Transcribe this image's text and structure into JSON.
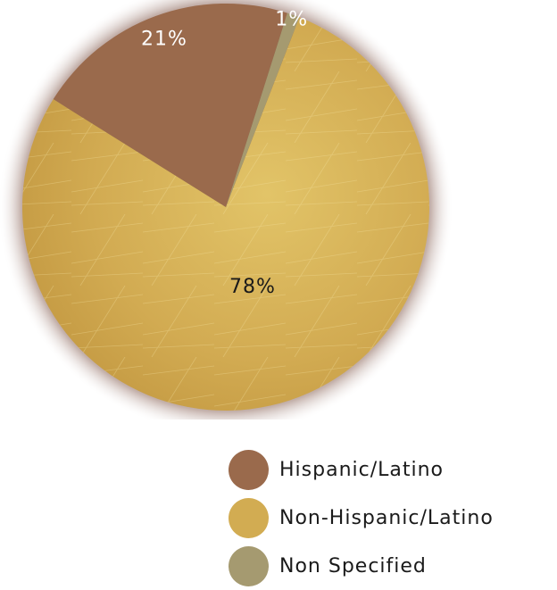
{
  "chart_data": {
    "type": "pie",
    "categories": [
      "Hispanic/Latino",
      "Non-Hispanic/Latino",
      "Non Specified"
    ],
    "values": [
      21,
      78,
      1
    ],
    "labels": [
      "21%",
      "78%",
      "1%"
    ],
    "colors": [
      "#9a6a4c",
      "#d2ac52",
      "#a59a70"
    ],
    "legend_position": "bottom-right"
  }
}
